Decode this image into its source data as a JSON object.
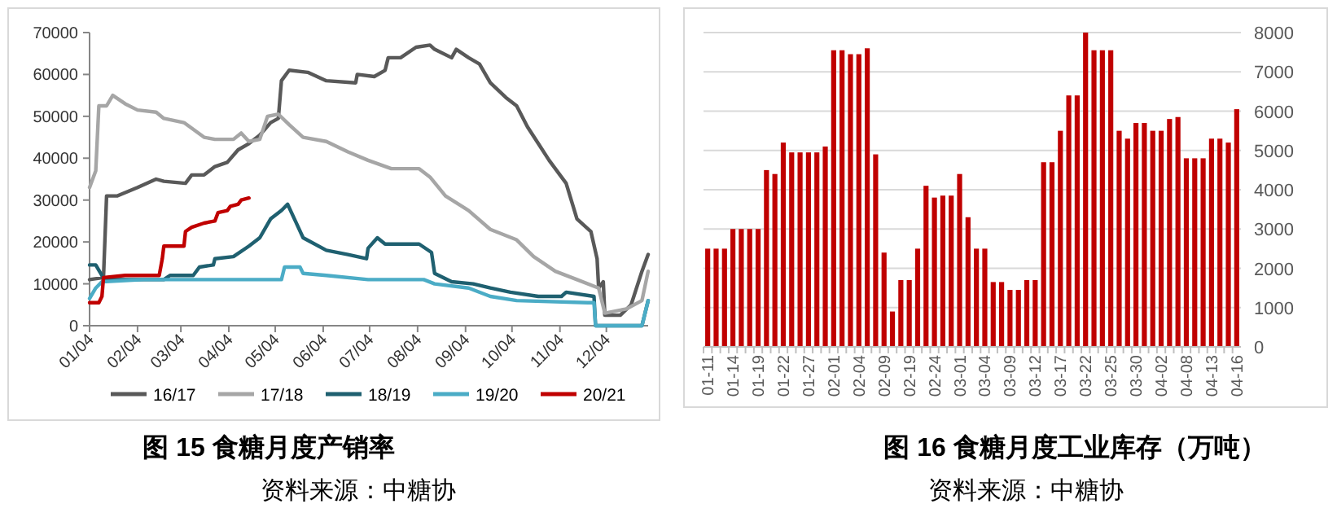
{
  "chart_data": [
    {
      "type": "line",
      "title": "图 15  食糖月度产销率",
      "annotations": [
        "资料来源：中糖协"
      ],
      "xlim": [
        "--01-04",
        "--12-31"
      ],
      "ylim": [
        0,
        70000
      ],
      "yticks": [
        0,
        10000,
        20000,
        30000,
        40000,
        50000,
        60000,
        70000
      ],
      "xticks": [
        {
          "value": "--01-04",
          "label": "01/04"
        },
        {
          "value": "--02-04",
          "label": "02/04"
        },
        {
          "value": "--03-04",
          "label": "03/04"
        },
        {
          "value": "--04-04",
          "label": "04/04"
        },
        {
          "value": "--05-04",
          "label": "05/04"
        },
        {
          "value": "--06-04",
          "label": "06/04"
        },
        {
          "value": "--07-04",
          "label": "07/04"
        },
        {
          "value": "--08-04",
          "label": "08/04"
        },
        {
          "value": "--09-04",
          "label": "09/04"
        },
        {
          "value": "--10-04",
          "label": "10/04"
        },
        {
          "value": "--11-04",
          "label": "11/04"
        },
        {
          "value": "--12-04",
          "label": "12/04"
        }
      ],
      "grid": false,
      "legend": "bottom",
      "marker": "none",
      "line_style": "solid",
      "series": [
        {
          "name": "16/17",
          "color": "#595959",
          "x": [
            "--01-04",
            "--01-13",
            "--01-15",
            "--01-22",
            "--02-04",
            "--02-16",
            "--02-21",
            "--03-07",
            "--03-11",
            "--03-19",
            "--03-26",
            "--04-03",
            "--04-10",
            "--04-17",
            "--04-24",
            "--05-01",
            "--05-06",
            "--05-08",
            "--05-13",
            "--05-25",
            "--06-06",
            "--06-25",
            "--06-26",
            "--07-07",
            "--07-14",
            "--07-16",
            "--07-24",
            "--08-03",
            "--08-12",
            "--08-15",
            "--08-26",
            "--08-29",
            "--09-06",
            "--09-13",
            "--09-20",
            "--09-30",
            "--10-07",
            "--10-14",
            "--10-21",
            "--10-28",
            "--11-08",
            "--11-15",
            "--11-24",
            "--11-28",
            "--11-29",
            "--12-02",
            "--12-03",
            "--12-13",
            "--12-20",
            "--12-27",
            "--12-31"
          ],
          "values": [
            11000,
            11500,
            31000,
            31000,
            33000,
            35000,
            34500,
            34000,
            36000,
            36000,
            38000,
            39000,
            42000,
            43500,
            45500,
            48500,
            49500,
            58500,
            61000,
            60500,
            58500,
            58000,
            60000,
            59500,
            61000,
            64000,
            64000,
            66500,
            67000,
            66000,
            64000,
            66000,
            64000,
            62500,
            58000,
            54500,
            52500,
            47500,
            43500,
            39500,
            34000,
            25500,
            22500,
            16000,
            9000,
            10500,
            2500,
            2500,
            5000,
            13000,
            17000
          ]
        },
        {
          "name": "17/18",
          "color": "#a6a6a6",
          "x": [
            "--01-04",
            "--01-08",
            "--01-10",
            "--01-15",
            "--01-19",
            "--01-27",
            "--02-04",
            "--02-16",
            "--02-21",
            "--03-06",
            "--03-19",
            "--03-26",
            "--04-07",
            "--04-12",
            "--04-17",
            "--04-24",
            "--04-29",
            "--05-06",
            "--05-13",
            "--05-22",
            "--06-06",
            "--06-20",
            "--07-03",
            "--07-18",
            "--08-05",
            "--08-12",
            "--08-22",
            "--09-06",
            "--09-20",
            "--10-07",
            "--10-18",
            "--11-01",
            "--11-15",
            "--11-29",
            "--12-03",
            "--12-17",
            "--12-27",
            "--12-31"
          ],
          "values": [
            33000,
            37000,
            52500,
            52500,
            55000,
            53000,
            51500,
            51000,
            49500,
            48500,
            45000,
            44500,
            44500,
            46000,
            44000,
            44500,
            50000,
            50500,
            48000,
            45000,
            44000,
            41500,
            39500,
            37500,
            37500,
            35500,
            31000,
            27500,
            23000,
            20500,
            16500,
            13000,
            11000,
            9000,
            3000,
            4000,
            6000,
            13000
          ]
        },
        {
          "name": "18/19",
          "color": "#1f6070",
          "x": [
            "--01-04",
            "--01-08",
            "--01-12",
            "--01-13",
            "--02-21",
            "--02-25",
            "--03-12",
            "--03-16",
            "--03-25",
            "--03-26",
            "--04-07",
            "--04-17",
            "--04-24",
            "--05-01",
            "--05-08",
            "--05-12",
            "--05-17",
            "--05-22",
            "--06-06",
            "--06-20",
            "--07-02",
            "--07-03",
            "--07-09",
            "--07-14",
            "--08-05",
            "--08-13",
            "--08-15",
            "--08-26",
            "--09-09",
            "--09-20",
            "--10-03",
            "--10-21",
            "--11-05",
            "--11-08",
            "--11-26",
            "--11-27",
            "--12-27",
            "--12-31"
          ],
          "values": [
            14500,
            14500,
            12000,
            11000,
            11000,
            12000,
            12000,
            14000,
            14500,
            16000,
            16500,
            19000,
            21000,
            25500,
            27500,
            29000,
            25000,
            21000,
            18000,
            17000,
            16000,
            18500,
            21000,
            19500,
            19500,
            17500,
            12500,
            10500,
            10000,
            9000,
            8000,
            7000,
            7000,
            8000,
            7000,
            0,
            0,
            6000
          ]
        },
        {
          "name": "19/20",
          "color": "#4bacc6",
          "x": [
            "--01-04",
            "--01-08",
            "--01-12",
            "--02-08",
            "--04-03",
            "--05-08",
            "--05-10",
            "--05-20",
            "--05-22",
            "--06-06",
            "--07-03",
            "--08-08",
            "--08-15",
            "--09-06",
            "--09-20",
            "--10-07",
            "--11-22",
            "--11-26",
            "--11-27",
            "--12-27",
            "--12-31"
          ],
          "values": [
            6500,
            9000,
            10500,
            11000,
            11000,
            11000,
            14000,
            14000,
            12500,
            12000,
            11000,
            11000,
            10000,
            9000,
            7000,
            6000,
            5500,
            5500,
            0,
            0,
            6000
          ]
        },
        {
          "name": "20/21",
          "color": "#c00000",
          "x": [
            "--01-04",
            "--01-10",
            "--01-12",
            "--01-13",
            "--01-27",
            "--02-18",
            "--02-20",
            "--02-21",
            "--03-06",
            "--03-07",
            "--03-11",
            "--03-19",
            "--03-26",
            "--03-28",
            "--04-03",
            "--04-05",
            "--04-10",
            "--04-12",
            "--04-17"
          ],
          "values": [
            5500,
            5500,
            7000,
            11500,
            12000,
            12000,
            16000,
            19000,
            19000,
            22500,
            23500,
            24500,
            25000,
            27000,
            27500,
            28500,
            29000,
            30000,
            30500
          ]
        }
      ]
    },
    {
      "type": "bar",
      "title": "图 16  食糖月度工业库存（万吨）",
      "annotations": [
        "资料来源：中糖协"
      ],
      "y2lim": [
        0,
        8000
      ],
      "y2ticks": [
        0,
        1000,
        2000,
        3000,
        4000,
        5000,
        6000,
        7000,
        8000
      ],
      "grid": "y",
      "categories": [
        "01-11",
        null,
        null,
        "01-14",
        null,
        null,
        "01-19",
        null,
        null,
        "01-22",
        null,
        null,
        "01-27",
        null,
        null,
        "02-01",
        null,
        null,
        "02-04",
        null,
        null,
        "02-09",
        null,
        null,
        "02-19",
        null,
        null,
        "02-24",
        null,
        null,
        "03-01",
        null,
        null,
        "03-04",
        null,
        null,
        "03-09",
        null,
        null,
        "03-12",
        null,
        null,
        "03-17",
        null,
        null,
        "03-22",
        null,
        null,
        "03-25",
        null,
        null,
        "03-30",
        null,
        null,
        "04-02",
        null,
        null,
        "04-08",
        null,
        null,
        "04-13",
        null,
        null,
        "04-16"
      ],
      "series": [
        {
          "color": "#c00000",
          "axis": "y2",
          "values": [
            2500,
            2500,
            2500,
            3000,
            3000,
            3000,
            3000,
            4500,
            4400,
            5200,
            4950,
            4950,
            4950,
            4950,
            5100,
            7550,
            7550,
            7450,
            7450,
            7600,
            4900,
            2400,
            900,
            1700,
            1700,
            2500,
            4100,
            3800,
            3850,
            3850,
            4400,
            3300,
            2500,
            2500,
            1650,
            1650,
            1450,
            1450,
            1700,
            1700,
            4700,
            4700,
            5500,
            6400,
            6400,
            8000,
            7550,
            7550,
            7550,
            5500,
            5300,
            5700,
            5700,
            5500,
            5500,
            5800,
            5850,
            4800,
            4800,
            4800,
            5300,
            5300,
            5200,
            6050
          ]
        }
      ]
    }
  ]
}
